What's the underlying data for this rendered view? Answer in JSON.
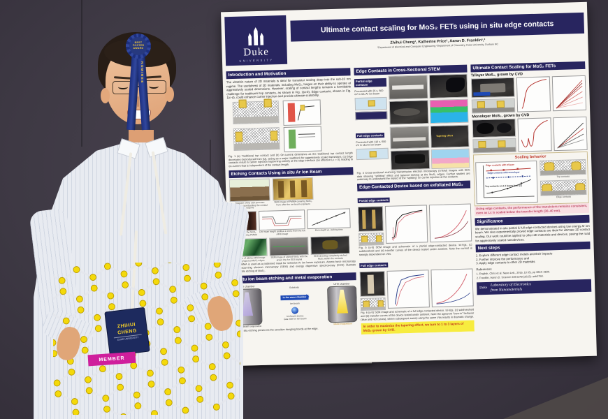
{
  "scene": {
    "ribbon": {
      "line1": "BEST",
      "line2": "POSTER",
      "line3": "AWARD",
      "tail_text": "NOMINEE"
    },
    "badge": {
      "name_line1": "ZHIHUI",
      "name_line2": "CHENG",
      "sub": "DUKE UNIVERSITY",
      "strip": "MEMBER"
    }
  },
  "poster": {
    "logo": {
      "word": "Duke",
      "university": "UNIVERSITY"
    },
    "title": "Ultimate contact scaling for MoS₂ FETs using in situ edge contacts",
    "authors": "Zhihui Cheng¹, Katherine Price¹, Aaron D. Franklin¹,²",
    "affiliation": "¹Department of Electrical and Computer Engineering  ²Department of Chemistry, Duke University, Durham NC",
    "intro": {
      "header": "Introduction and Motivation",
      "body": "The ultrathin nature of 2D materials is ideal for transistor scaling deep into the sub-10 nm regime. The usefulness of 2D materials, including MoS₂, hinges on their ability to operate at aggressively scaled dimensions. However, scaling of contact lengths remains a formidable challenge for traditional top contacts, as shown in Fig. 1(a-b). Edge contacts, shown in Fig. 1(c-d), could enhance carrier injection and provide ultimate scalability.",
      "fig1_caption": "Fig. 1 (a) Traditional top contact and (b) On-current diminishes as the traditional top contact length decreases (reproduced from [1]), acting as a major roadblock for aggressively scaled transistors. (c) Edge contacts result in carrier injection happening entirely at the edge interface (an effective Lc = 0), leading to on-current that is independent of the contact length."
    },
    "etching": {
      "header": "Etching Contacts Using in situ Ar Ion Beam",
      "captions": [
        "Diagram of the etch process: selectively bombarding the contact regions",
        "SEM image of PMMA covering MoS₂, here after the ion beam exposure",
        "AFM image of the MoS₂ film after removing PMMA",
        "Line scan height profiles 1 and 2 from the left AFM image",
        "Etch depth vs. etching time",
        "3D profile of above AFM image showing tapered MoS₂ edges",
        "SEM image of etched MoS₂ with the green line for EDS signal",
        "EDS showing completely etched MoS₂ within the contacts"
      ],
      "fig2_caption": "Fig. 2 PMMA is used as a patterned mask for selective Ar ion beam exposure. Atomic force microscopy (AFM), scanning electron microscopy (SEM) and energy dispersive spectroscopy (EDS) illustrate controllable etching of MoS₂."
    },
    "insitu": {
      "header": "In situ ion beam etching and metal evaporation",
      "uhv_left": "UHV chamber",
      "uhv_right": "UHV chamber",
      "arrow": "In the same chamber",
      "substrate": "Substrate",
      "ion_beam": "Ion beam",
      "ion_source": "Ion beam source",
      "ebeam": "Electron beam evaporation",
      "gas_inlet": "Gas inlet for ion beam",
      "metal_evap": "Metal evaporation",
      "fig3_caption": "Fig. 3 In situ etching preserves the sensitive dangling bonds at the edge."
    },
    "stem": {
      "header": "Edge Contacts in Cross-Sectional STEM",
      "partial_label": "Partial edge contacts",
      "partial_text": "Processed with 25 s, 600 eV in situ Ar ion beam",
      "full_label": "Full edge contacts",
      "full_text": "Processed with 110 s, 600 eV in situ Ar ion beam",
      "tapering": "Tapering effect",
      "fig4_caption": "Fig. 4 Cross-sectional scanning transmission electron microscopy (STEM) images with EDS data showing “splitting” effect and tapered etching at the MoS₂ edges. Further studies are underway to understand the impact of the “splitting” on carrier injection at the contacts."
    },
    "device": {
      "header": "Edge-Contacted Device based on exfoliated MoS₂",
      "partial_label": "Partial edge contacts",
      "full_label": "Full edge contacts",
      "fig5_caption": "Fig. 5 (a-b) SEM image and schematic of a partial edge-contacted device. Id-Vgs, (c) subthreshold and (d) transfer curves of the device tested under ambient. Note the current is strongly dependent on Vds.",
      "fig6_caption": "Fig. 6 (a-b) SEM image and schematic of a full edge-contacted device. Id-Vgs, (c) subthreshold and (d) transfer curves of the device tested under ambient. Note the apparent “burn-in” behavior (blue and red curves), where subsequent sweep using the same Vds results in dramatic change.",
      "highlight": "In order to maximize the tapering effect, we turn to 1 to 3 layers of MoS₂ grown by CVD."
    },
    "ultimate": {
      "header": "Ultimate Contact Scaling for MoS₂ FETs",
      "trilayer": "Trilayer MoS₂, grown by CVD",
      "monolayer": "Monolayer MoS₂, grown by CVD",
      "scaling_title": "Scaling behavior",
      "legend": [
        "Edge contacts with trilayer",
        "Edge contacts with monolayer",
        "Top contacts on 2-3 layers from [1]"
      ],
      "schem_top": "Top contacts",
      "schem_edge": "Edge contacts",
      "conclusion": "Using edge contacts, the performance of the transistors remains consistent, even as Lc is scaled below the transfer length (30–40 nm)."
    },
    "significance": {
      "header": "Significance",
      "body": "We demonstrated in-situ partial & full edge-contacted devices using low energy Ar ion beam. We also experimentally proved edge contacts are ideal for ultimate 2D contact scaling. Our work could be applied to other 2D materials and devices, paving the road for aggressively scaled nanodevices."
    },
    "next_steps": {
      "header": "Next steps",
      "items": [
        "1.  Explore different edge contact metals and their impacts",
        "2.  Further improve the performance and",
        "3.  Apply edge contacts to other 2D materials"
      ],
      "references_label": "References",
      "references": [
        "1.  English, Chris et al. Nano Lett., 2016, 16 (6), pp 3824–3830.",
        "2.  Franklin, Aaron D. Science 349.6249 (2015): aab2750."
      ]
    },
    "footer": {
      "duke": "Duke",
      "lab_line1": "Laboratory of Electronics",
      "lab_line2": "from Nanomaterials"
    }
  }
}
